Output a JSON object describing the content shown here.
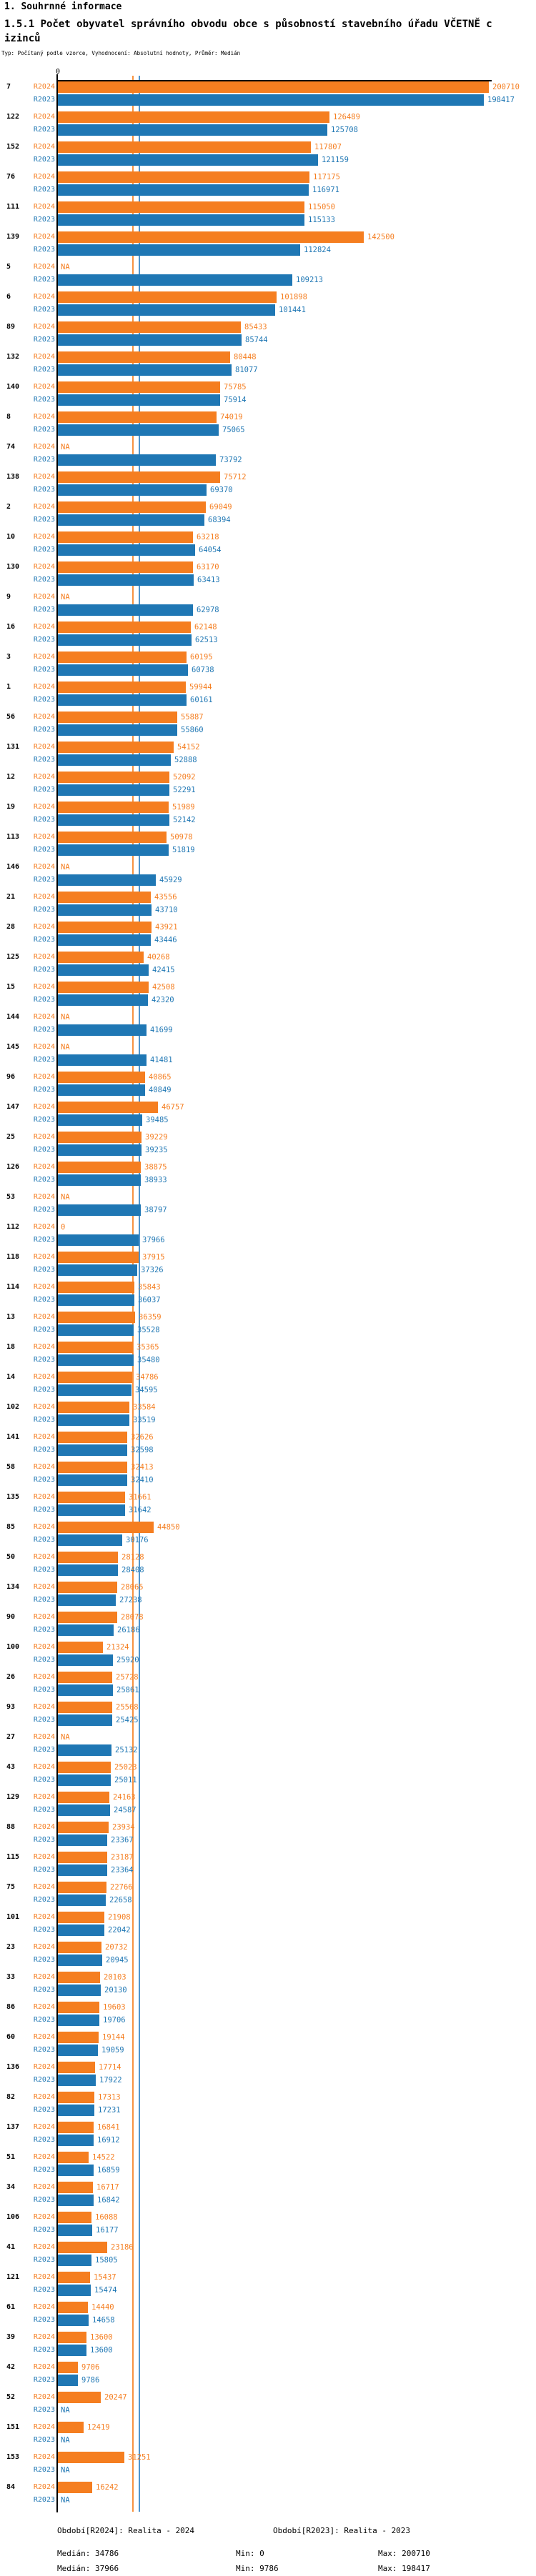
{
  "header": {
    "section_title": "1. Souhrnné informace",
    "title": "1.5.1 Počet obyvatel správního obvodu obce s působností stavebního úřadu VČETNĚ cizinců",
    "meta": "Typ: Počítaný podle vzorce, Vyhodnocení: Absolutní hodnoty, Průměr: Medián"
  },
  "axis": {
    "zero_label": "0"
  },
  "na_label": "NA",
  "colors": {
    "r2024": "#f57e20",
    "r2023": "#1f77b4",
    "median_r2024": "#f79240",
    "median_r2023": "#4f94cd",
    "axis": "#000000"
  },
  "footer": {
    "legend_r2024": "Období[R2024]: Realita - 2024",
    "legend_r2023": "Období[R2023]: Realita - 2023",
    "median_r2024": "Medián: 34786",
    "min_r2024": "Min: 0",
    "max_r2024": "Max: 200710",
    "median_r2023": "Medián: 37966",
    "min_r2023": "Min: 9786",
    "max_r2023": "Max: 198417"
  },
  "chart_data": {
    "type": "bar",
    "orientation": "horizontal",
    "title": "1.5.1 Počet obyvatel správního obvodu obce s působností stavebního úřadu VČETNĚ cizinců",
    "xlabel": "",
    "ylabel": "",
    "xlim": [
      0,
      200710
    ],
    "grid": false,
    "legend_position": "bottom",
    "medians": {
      "R2024": 34786,
      "R2023": 37966
    },
    "stats": {
      "R2024": {
        "median": 34786,
        "min": 0,
        "max": 200710
      },
      "R2023": {
        "median": 37966,
        "min": 9786,
        "max": 198417
      }
    },
    "categories": [
      7,
      122,
      152,
      76,
      111,
      139,
      5,
      6,
      89,
      132,
      140,
      8,
      74,
      138,
      2,
      10,
      130,
      9,
      16,
      3,
      1,
      56,
      131,
      12,
      19,
      113,
      146,
      21,
      28,
      125,
      15,
      144,
      145,
      96,
      147,
      25,
      126,
      53,
      112,
      118,
      114,
      13,
      18,
      14,
      102,
      141,
      58,
      135,
      85,
      50,
      134,
      90,
      100,
      26,
      93,
      27,
      43,
      129,
      88,
      115,
      75,
      101,
      23,
      33,
      86,
      60,
      136,
      82,
      137,
      51,
      34,
      106,
      41,
      121,
      61,
      39,
      42,
      52,
      151,
      153,
      84
    ],
    "series": [
      {
        "name": "R2024",
        "values": [
          200710,
          126489,
          117807,
          117175,
          115050,
          142500,
          "NA",
          101898,
          85433,
          80448,
          75785,
          74019,
          "NA",
          75712,
          69049,
          63218,
          63170,
          "NA",
          62148,
          60195,
          59944,
          55887,
          54152,
          52092,
          51989,
          50978,
          "NA",
          43556,
          43921,
          40268,
          42508,
          "NA",
          "NA",
          40865,
          46757,
          39229,
          38875,
          "NA",
          0,
          37915,
          35843,
          36359,
          35365,
          34786,
          33584,
          32626,
          32413,
          31661,
          44850,
          28128,
          28065,
          28078,
          21324,
          25728,
          25568,
          "NA",
          25023,
          24163,
          23934,
          23187,
          22766,
          21908,
          20732,
          20103,
          19603,
          19144,
          17714,
          17313,
          16841,
          14522,
          16717,
          16088,
          23186,
          15437,
          14440,
          13600,
          9706,
          20247,
          12419,
          31251,
          16242
        ]
      },
      {
        "name": "R2023",
        "values": [
          198417,
          125708,
          121159,
          116971,
          115133,
          112824,
          109213,
          101441,
          85744,
          81077,
          75914,
          75065,
          73792,
          69370,
          68394,
          64054,
          63413,
          62978,
          62513,
          60738,
          60161,
          55860,
          52888,
          52291,
          52142,
          51819,
          45929,
          43710,
          43446,
          42415,
          42320,
          41699,
          41481,
          40849,
          39485,
          39235,
          38933,
          38797,
          37966,
          37326,
          36037,
          35528,
          35480,
          34595,
          33519,
          32598,
          32410,
          31642,
          30176,
          28408,
          27238,
          26186,
          25920,
          25861,
          25425,
          25132,
          25011,
          24587,
          23367,
          23364,
          22658,
          22042,
          20945,
          20130,
          19706,
          19059,
          17922,
          17231,
          16912,
          16859,
          16842,
          16177,
          15805,
          15474,
          14658,
          13600,
          9786,
          "NA",
          "NA",
          "NA",
          "NA"
        ]
      }
    ]
  }
}
